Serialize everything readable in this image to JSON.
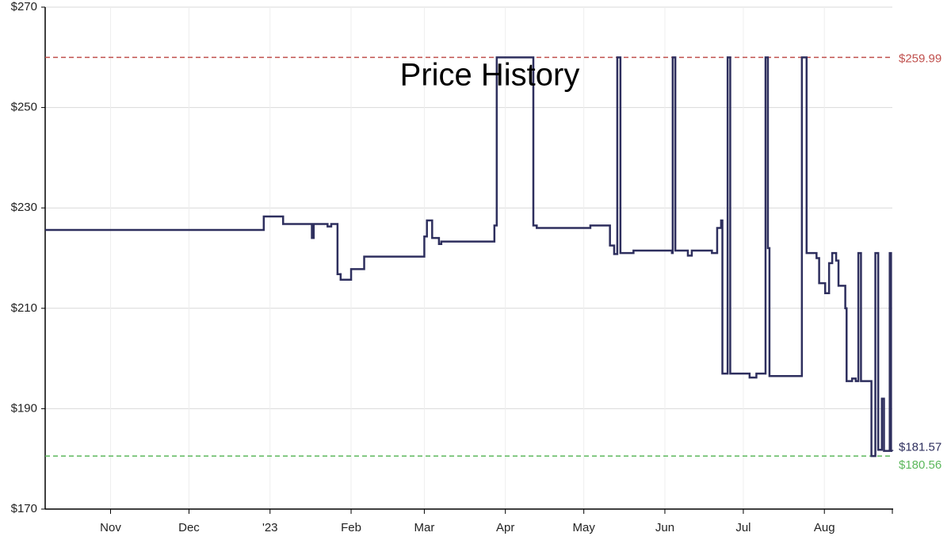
{
  "chart_data": {
    "type": "line",
    "title": "Price History",
    "step": true,
    "grid": true,
    "x": [
      -25,
      58.6,
      66,
      77,
      77.7,
      83,
      84.4,
      86.8,
      88,
      92,
      97,
      120,
      121,
      123,
      125.6,
      126.5,
      146.8,
      147.7,
      161.7,
      163,
      183.5,
      191,
      192.6,
      193.8,
      195,
      200,
      214.7,
      215,
      216,
      220.8,
      222.3,
      230,
      232,
      233.5,
      234,
      236,
      237,
      244.4,
      247,
      250.5,
      251.4,
      252,
      264.4,
      266.2,
      270,
      271,
      273.3,
      274.8,
      276,
      277.5,
      278.4,
      281,
      281.5,
      283.6,
      285,
      286,
      287,
      291,
      292.5,
      293.6,
      295,
      295.8,
      298,
      298.5,
      299
    ],
    "series": [
      {
        "name": "Price",
        "color": "#2e2f5e",
        "values": [
          225.6,
          228.3,
          226.8,
          224,
          226.8,
          226.3,
          226.8,
          216.8,
          215.7,
          217.8,
          220.3,
          224.3,
          227.5,
          224,
          222.8,
          223.3,
          226.5,
          259.99,
          226.5,
          226,
          226.5,
          222.5,
          220.8,
          259.99,
          221,
          221.5,
          221,
          259.99,
          221.5,
          220.5,
          221.5,
          221,
          226,
          227.5,
          197,
          259.99,
          197,
          196.2,
          197,
          259.99,
          222,
          196.5,
          259.99,
          221,
          220,
          215,
          213,
          219,
          221,
          219.5,
          214.5,
          210,
          195.5,
          196,
          195.5,
          221,
          195.5,
          180.56,
          221,
          181.8,
          192,
          181.6,
          221,
          181.6,
          181.57
        ]
      }
    ],
    "xlim": [
      -25,
      299
    ],
    "xticks": [
      {
        "value": 0,
        "label": "Nov"
      },
      {
        "value": 30,
        "label": "Dec"
      },
      {
        "value": 61,
        "label": "'23"
      },
      {
        "value": 92,
        "label": "Feb"
      },
      {
        "value": 120,
        "label": "Mar"
      },
      {
        "value": 151,
        "label": "Apr"
      },
      {
        "value": 181,
        "label": "May"
      },
      {
        "value": 212,
        "label": "Jun"
      },
      {
        "value": 242,
        "label": "Jul"
      },
      {
        "value": 273,
        "label": "Aug"
      }
    ],
    "ylim": [
      170,
      270
    ],
    "yticks": [
      {
        "value": 170,
        "label": "$170"
      },
      {
        "value": 190,
        "label": "$190"
      },
      {
        "value": 210,
        "label": "$210"
      },
      {
        "value": 230,
        "label": "$230"
      },
      {
        "value": 250,
        "label": "$250"
      },
      {
        "value": 270,
        "label": "$270"
      }
    ],
    "reference_lines": [
      {
        "value": 259.99,
        "label": "$259.99",
        "color": "#c0504d"
      },
      {
        "value": 180.56,
        "label": "$180.56",
        "color": "#5cb85c"
      }
    ],
    "last_label": {
      "value": 181.57,
      "label": "$181.57",
      "color": "#2e2f5e"
    }
  }
}
